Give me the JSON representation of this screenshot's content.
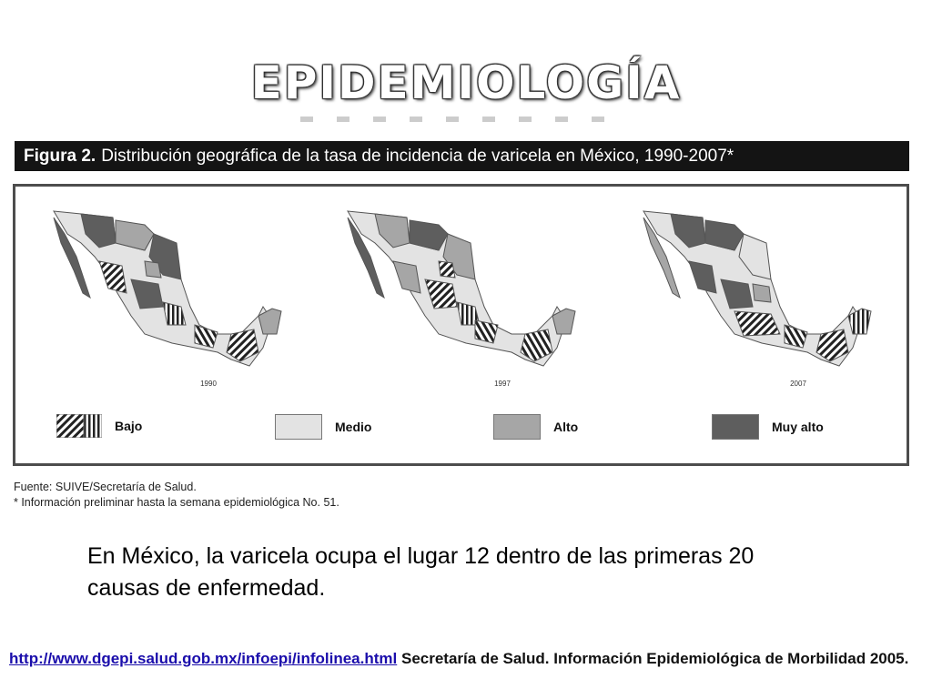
{
  "slide": {
    "title": "EPIDEMIOLOGÍA"
  },
  "figure": {
    "label": "Figura 2.",
    "caption": "Distribución geográfica de la tasa de incidencia de varicela en México, 1990-2007*",
    "maps": [
      {
        "year": "1990"
      },
      {
        "year": "1997"
      },
      {
        "year": "2007"
      }
    ],
    "legend": [
      {
        "label": "Bajo",
        "pattern": "hatched"
      },
      {
        "label": "Medio",
        "color": "#e3e3e3"
      },
      {
        "label": "Alto",
        "color": "#a6a6a6"
      },
      {
        "label": "Muy alto",
        "color": "#5e5e5e"
      }
    ],
    "source": "Fuente: SUIVE/Secretaría de Salud.",
    "note": "* Información preliminar hasta la semana epidemiológica No. 51."
  },
  "body": {
    "text": "En México, la varicela ocupa el lugar 12 dentro de las primeras 20 causas de enfermedad."
  },
  "reference": {
    "link": "http://www.dgepi.salud.gob.mx/infoepi/infolinea.html",
    "text": "Secretaría de Salud. Información Epidemiológica de Morbilidad 2005."
  }
}
